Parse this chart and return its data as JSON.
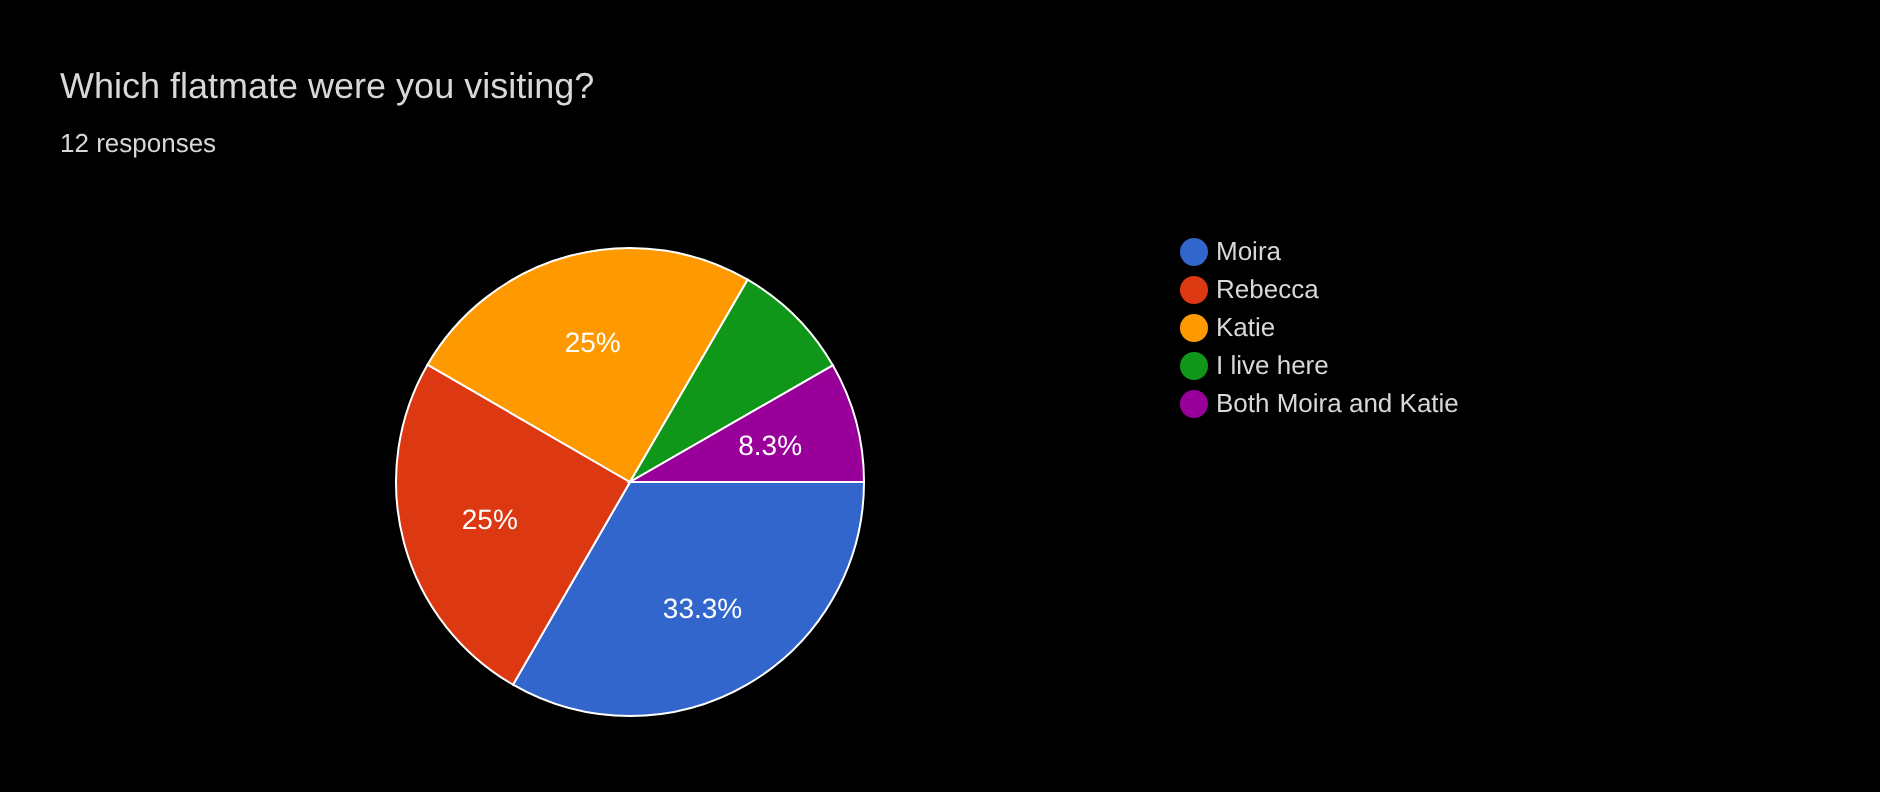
{
  "chart_data": {
    "type": "pie",
    "title": "Which flatmate were you visiting?",
    "subtitle": "12 responses",
    "categories": [
      "Moira",
      "Rebecca",
      "Katie",
      "I live here",
      "Both Moira and Katie"
    ],
    "values": [
      33.3,
      25,
      25,
      8.3,
      8.3
    ],
    "colors": [
      "#3366cc",
      "#dc3912",
      "#ff9900",
      "#109618",
      "#990099"
    ],
    "value_labels": [
      "33.3%",
      "25%",
      "25%",
      null,
      "8.3%"
    ],
    "legend": "right"
  }
}
